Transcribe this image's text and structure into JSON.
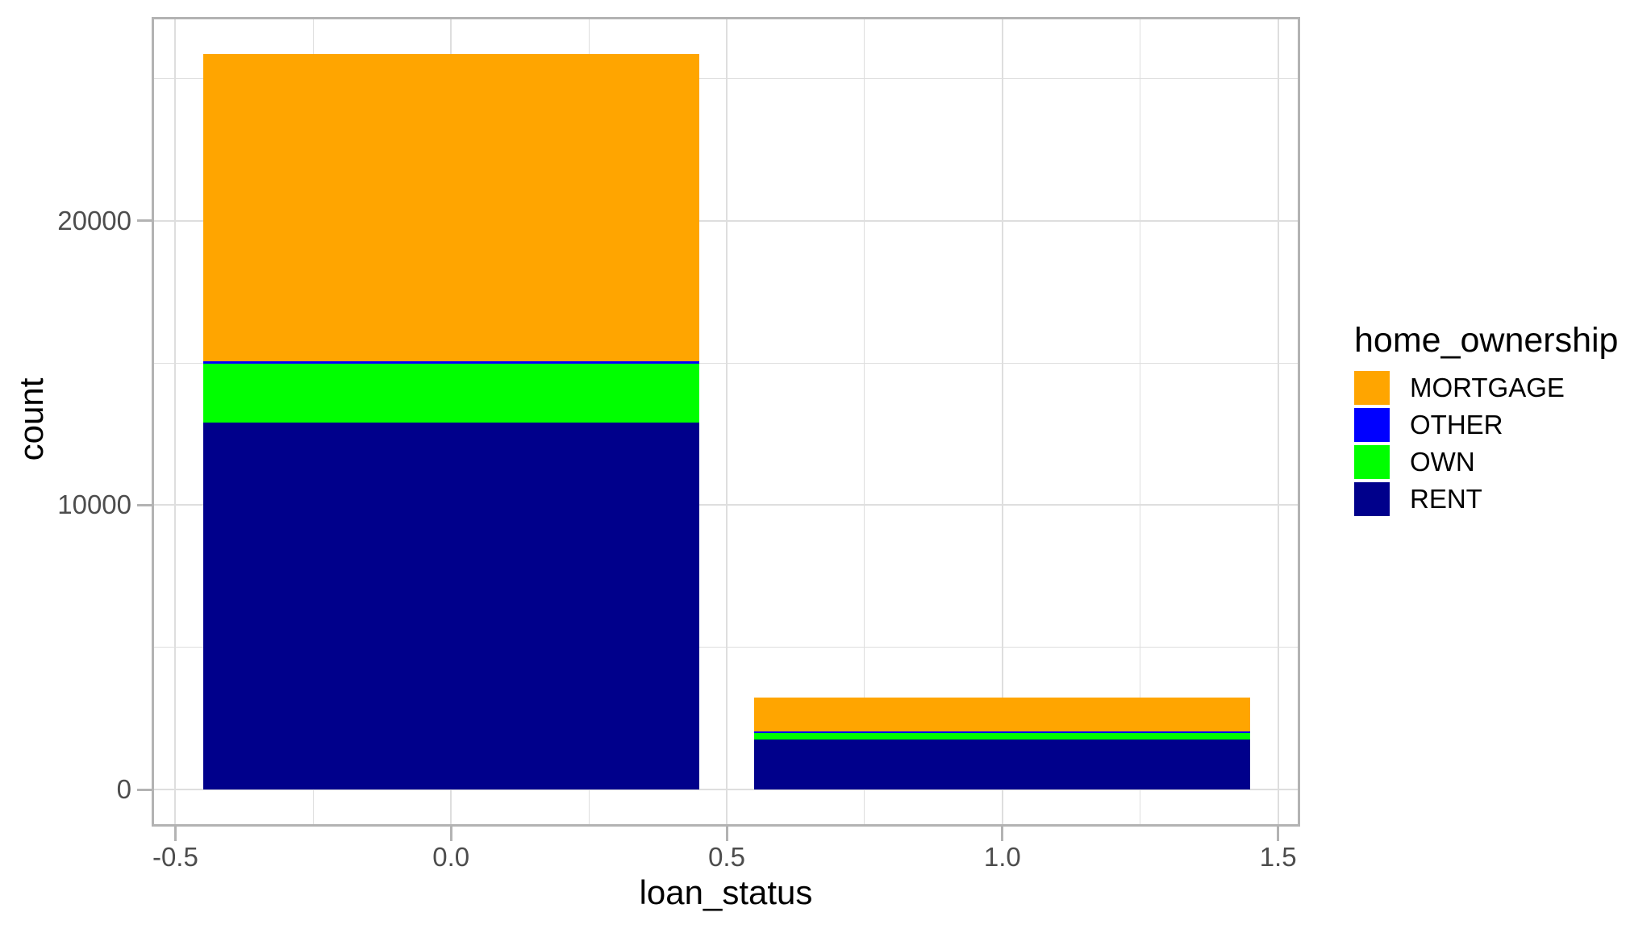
{
  "axes": {
    "x_title": "loan_status",
    "y_title": "count"
  },
  "legend": {
    "title": "home_ownership",
    "position": "right",
    "entries": [
      {
        "label": "MORTGAGE",
        "color": "#FFA500"
      },
      {
        "label": "OTHER",
        "color": "#0000FF"
      },
      {
        "label": "OWN",
        "color": "#00FF00"
      },
      {
        "label": "RENT",
        "color": "#00008B"
      }
    ]
  },
  "chart_data": {
    "type": "bar",
    "stacked": true,
    "title": "",
    "xlabel": "loan_status",
    "ylabel": "count",
    "categories": [
      "0",
      "1"
    ],
    "x_positions": [
      0,
      1
    ],
    "bar_width": 0.9,
    "series": [
      {
        "name": "RENT",
        "color": "#00008B",
        "values": [
          12915,
          1777
        ]
      },
      {
        "name": "OWN",
        "color": "#00FF00",
        "values": [
          2049,
          252
        ]
      },
      {
        "name": "OTHER",
        "color": "#0000FF",
        "values": [
          80,
          17
        ]
      },
      {
        "name": "MORTGAGE",
        "color": "#FFA500",
        "values": [
          10821,
          1181
        ]
      }
    ],
    "stack_order_bottom_to_top": [
      "RENT",
      "OWN",
      "OTHER",
      "MORTGAGE"
    ],
    "totals": [
      25865,
      3227
    ],
    "x_ticks": [
      {
        "value": -0.5,
        "label": "-0.5"
      },
      {
        "value": 0.0,
        "label": "0.0"
      },
      {
        "value": 0.5,
        "label": "0.5"
      },
      {
        "value": 1.0,
        "label": "1.0"
      },
      {
        "value": 1.5,
        "label": "1.5"
      }
    ],
    "x_minor_ticks": [
      -0.25,
      0.25,
      0.75,
      1.25
    ],
    "y_ticks": [
      {
        "value": 0,
        "label": "0"
      },
      {
        "value": 10000,
        "label": "10000"
      },
      {
        "value": 20000,
        "label": "20000"
      }
    ],
    "y_minor_ticks": [
      5000,
      15000,
      25000
    ],
    "xlim": [
      -0.543,
      1.54
    ],
    "ylim": [
      -1293,
      27158
    ],
    "grid": true,
    "legend_position": "right"
  }
}
